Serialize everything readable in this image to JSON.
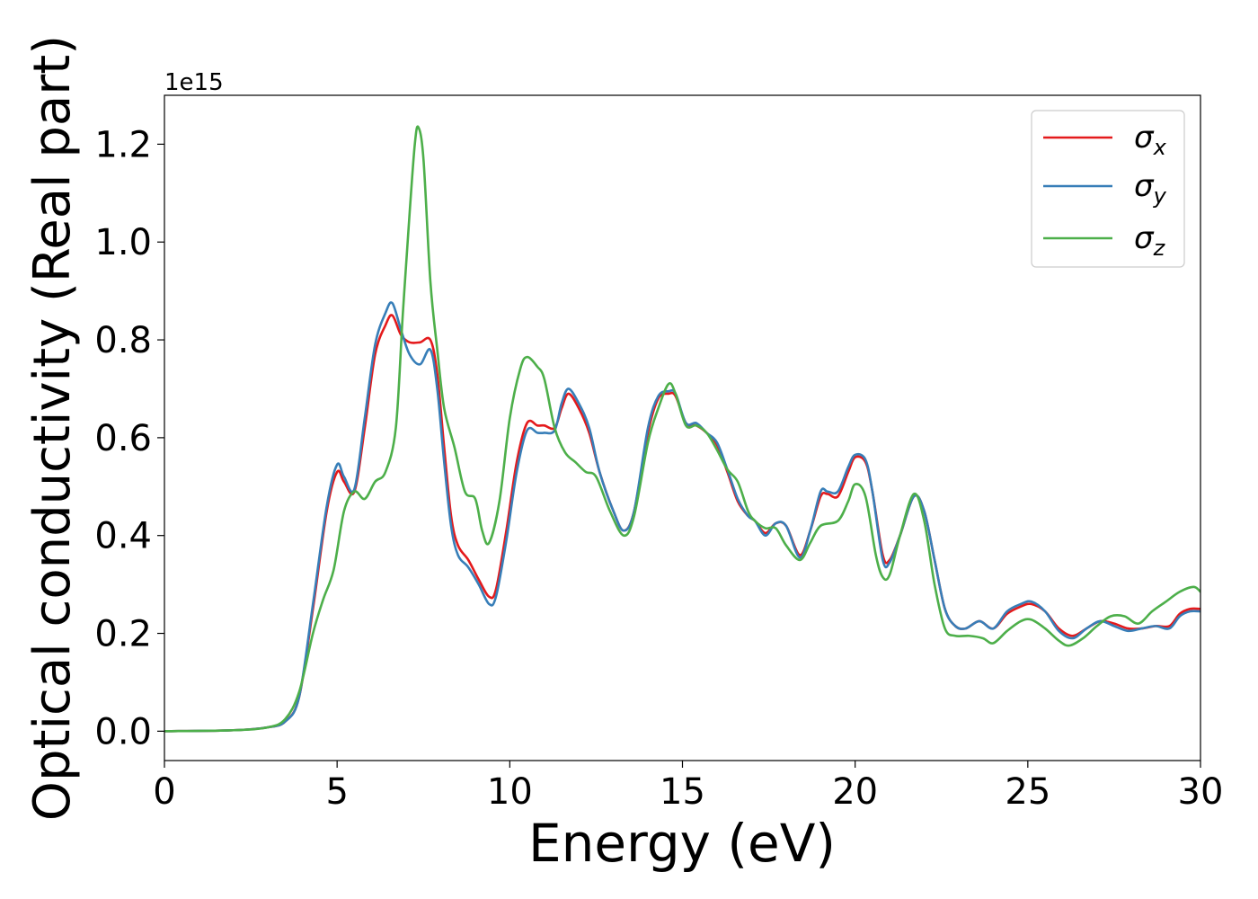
{
  "chart_data": {
    "type": "line",
    "title": "",
    "xlabel": "Energy (eV)",
    "ylabel": "Optical conductivity (Real part)",
    "y_offset_label": "1e15",
    "xlim": [
      0,
      30
    ],
    "ylim": [
      -0.06,
      1.3
    ],
    "xticks": [
      0,
      5,
      10,
      15,
      20,
      25,
      30
    ],
    "xtick_labels": [
      "0",
      "5",
      "10",
      "15",
      "20",
      "25",
      "30"
    ],
    "yticks": [
      0.0,
      0.2,
      0.4,
      0.6,
      0.8,
      1.0,
      1.2
    ],
    "ytick_labels": [
      "0.0",
      "0.2",
      "0.4",
      "0.6",
      "0.8",
      "1.0",
      "1.2"
    ],
    "grid": false,
    "legend_position": "top-right",
    "series": [
      {
        "name": "σ",
        "sub": "x",
        "color": "#e41a1c",
        "points": [
          [
            0,
            0
          ],
          [
            2,
            0.002
          ],
          [
            3,
            0.008
          ],
          [
            3.5,
            0.02
          ],
          [
            3.9,
            0.07
          ],
          [
            4.3,
            0.25
          ],
          [
            4.7,
            0.45
          ],
          [
            5.0,
            0.53
          ],
          [
            5.2,
            0.51
          ],
          [
            5.5,
            0.49
          ],
          [
            5.8,
            0.62
          ],
          [
            6.1,
            0.77
          ],
          [
            6.4,
            0.83
          ],
          [
            6.6,
            0.85
          ],
          [
            6.85,
            0.81
          ],
          [
            7.1,
            0.795
          ],
          [
            7.4,
            0.795
          ],
          [
            7.7,
            0.8
          ],
          [
            7.9,
            0.73
          ],
          [
            8.1,
            0.58
          ],
          [
            8.3,
            0.44
          ],
          [
            8.5,
            0.38
          ],
          [
            8.8,
            0.35
          ],
          [
            9.1,
            0.31
          ],
          [
            9.4,
            0.275
          ],
          [
            9.6,
            0.29
          ],
          [
            9.9,
            0.41
          ],
          [
            10.2,
            0.55
          ],
          [
            10.5,
            0.63
          ],
          [
            10.8,
            0.625
          ],
          [
            11.0,
            0.625
          ],
          [
            11.3,
            0.62
          ],
          [
            11.5,
            0.66
          ],
          [
            11.7,
            0.69
          ],
          [
            12.0,
            0.66
          ],
          [
            12.3,
            0.61
          ],
          [
            12.6,
            0.53
          ],
          [
            13.0,
            0.45
          ],
          [
            13.3,
            0.41
          ],
          [
            13.6,
            0.45
          ],
          [
            14.0,
            0.61
          ],
          [
            14.3,
            0.68
          ],
          [
            14.6,
            0.69
          ],
          [
            14.8,
            0.685
          ],
          [
            15.1,
            0.63
          ],
          [
            15.4,
            0.625
          ],
          [
            15.7,
            0.61
          ],
          [
            16.0,
            0.585
          ],
          [
            16.3,
            0.53
          ],
          [
            16.6,
            0.47
          ],
          [
            16.9,
            0.44
          ],
          [
            17.1,
            0.43
          ],
          [
            17.4,
            0.405
          ],
          [
            17.7,
            0.425
          ],
          [
            18.0,
            0.42
          ],
          [
            18.4,
            0.36
          ],
          [
            18.7,
            0.41
          ],
          [
            19.0,
            0.48
          ],
          [
            19.2,
            0.485
          ],
          [
            19.5,
            0.48
          ],
          [
            19.8,
            0.53
          ],
          [
            20.0,
            0.56
          ],
          [
            20.3,
            0.55
          ],
          [
            20.5,
            0.49
          ],
          [
            20.8,
            0.36
          ],
          [
            21.0,
            0.35
          ],
          [
            21.3,
            0.4
          ],
          [
            21.7,
            0.48
          ],
          [
            22.0,
            0.45
          ],
          [
            22.3,
            0.35
          ],
          [
            22.6,
            0.25
          ],
          [
            22.9,
            0.215
          ],
          [
            23.2,
            0.21
          ],
          [
            23.6,
            0.225
          ],
          [
            24.0,
            0.21
          ],
          [
            24.4,
            0.24
          ],
          [
            24.8,
            0.255
          ],
          [
            25.1,
            0.26
          ],
          [
            25.5,
            0.245
          ],
          [
            25.9,
            0.21
          ],
          [
            26.3,
            0.195
          ],
          [
            26.7,
            0.21
          ],
          [
            27.1,
            0.225
          ],
          [
            27.5,
            0.22
          ],
          [
            27.9,
            0.21
          ],
          [
            28.3,
            0.21
          ],
          [
            28.7,
            0.215
          ],
          [
            29.1,
            0.215
          ],
          [
            29.4,
            0.24
          ],
          [
            29.7,
            0.25
          ],
          [
            30.0,
            0.25
          ]
        ]
      },
      {
        "name": "σ",
        "sub": "y",
        "color": "#377eb8",
        "points": [
          [
            0,
            0
          ],
          [
            2,
            0.002
          ],
          [
            3,
            0.008
          ],
          [
            3.5,
            0.02
          ],
          [
            3.9,
            0.07
          ],
          [
            4.3,
            0.26
          ],
          [
            4.7,
            0.46
          ],
          [
            5.0,
            0.545
          ],
          [
            5.2,
            0.52
          ],
          [
            5.5,
            0.495
          ],
          [
            5.8,
            0.64
          ],
          [
            6.1,
            0.79
          ],
          [
            6.4,
            0.855
          ],
          [
            6.6,
            0.875
          ],
          [
            6.85,
            0.82
          ],
          [
            7.1,
            0.77
          ],
          [
            7.4,
            0.75
          ],
          [
            7.7,
            0.78
          ],
          [
            7.9,
            0.7
          ],
          [
            8.1,
            0.55
          ],
          [
            8.3,
            0.42
          ],
          [
            8.5,
            0.36
          ],
          [
            8.8,
            0.335
          ],
          [
            9.1,
            0.3
          ],
          [
            9.4,
            0.26
          ],
          [
            9.6,
            0.275
          ],
          [
            9.9,
            0.39
          ],
          [
            10.2,
            0.53
          ],
          [
            10.5,
            0.615
          ],
          [
            10.8,
            0.61
          ],
          [
            11.0,
            0.61
          ],
          [
            11.3,
            0.615
          ],
          [
            11.5,
            0.67
          ],
          [
            11.7,
            0.7
          ],
          [
            12.0,
            0.67
          ],
          [
            12.3,
            0.62
          ],
          [
            12.6,
            0.53
          ],
          [
            13.0,
            0.45
          ],
          [
            13.3,
            0.41
          ],
          [
            13.6,
            0.45
          ],
          [
            14.0,
            0.62
          ],
          [
            14.3,
            0.685
          ],
          [
            14.6,
            0.695
          ],
          [
            14.8,
            0.69
          ],
          [
            15.1,
            0.63
          ],
          [
            15.4,
            0.63
          ],
          [
            15.7,
            0.61
          ],
          [
            16.0,
            0.59
          ],
          [
            16.3,
            0.535
          ],
          [
            16.6,
            0.475
          ],
          [
            16.9,
            0.44
          ],
          [
            17.1,
            0.43
          ],
          [
            17.4,
            0.4
          ],
          [
            17.7,
            0.425
          ],
          [
            18.0,
            0.42
          ],
          [
            18.4,
            0.355
          ],
          [
            18.7,
            0.41
          ],
          [
            19.0,
            0.49
          ],
          [
            19.2,
            0.49
          ],
          [
            19.5,
            0.49
          ],
          [
            19.8,
            0.54
          ],
          [
            20.0,
            0.565
          ],
          [
            20.3,
            0.555
          ],
          [
            20.5,
            0.49
          ],
          [
            20.8,
            0.35
          ],
          [
            21.0,
            0.345
          ],
          [
            21.3,
            0.4
          ],
          [
            21.7,
            0.48
          ],
          [
            22.0,
            0.45
          ],
          [
            22.3,
            0.35
          ],
          [
            22.6,
            0.25
          ],
          [
            22.9,
            0.215
          ],
          [
            23.2,
            0.21
          ],
          [
            23.6,
            0.225
          ],
          [
            24.0,
            0.21
          ],
          [
            24.4,
            0.245
          ],
          [
            24.8,
            0.26
          ],
          [
            25.1,
            0.265
          ],
          [
            25.5,
            0.245
          ],
          [
            25.9,
            0.205
          ],
          [
            26.3,
            0.19
          ],
          [
            26.7,
            0.21
          ],
          [
            27.1,
            0.225
          ],
          [
            27.5,
            0.215
          ],
          [
            27.9,
            0.205
          ],
          [
            28.3,
            0.21
          ],
          [
            28.7,
            0.215
          ],
          [
            29.1,
            0.21
          ],
          [
            29.4,
            0.235
          ],
          [
            29.7,
            0.245
          ],
          [
            30.0,
            0.245
          ]
        ]
      },
      {
        "name": "σ",
        "sub": "z",
        "color": "#4daf4a",
        "points": [
          [
            0,
            0
          ],
          [
            2,
            0.002
          ],
          [
            3,
            0.008
          ],
          [
            3.5,
            0.025
          ],
          [
            3.9,
            0.08
          ],
          [
            4.3,
            0.2
          ],
          [
            4.6,
            0.27
          ],
          [
            4.9,
            0.33
          ],
          [
            5.2,
            0.45
          ],
          [
            5.5,
            0.49
          ],
          [
            5.8,
            0.475
          ],
          [
            6.1,
            0.51
          ],
          [
            6.4,
            0.53
          ],
          [
            6.7,
            0.62
          ],
          [
            6.9,
            0.85
          ],
          [
            7.1,
            1.06
          ],
          [
            7.25,
            1.2
          ],
          [
            7.35,
            1.235
          ],
          [
            7.5,
            1.17
          ],
          [
            7.7,
            0.92
          ],
          [
            7.9,
            0.78
          ],
          [
            8.1,
            0.66
          ],
          [
            8.4,
            0.58
          ],
          [
            8.7,
            0.49
          ],
          [
            9.0,
            0.475
          ],
          [
            9.2,
            0.41
          ],
          [
            9.4,
            0.385
          ],
          [
            9.7,
            0.47
          ],
          [
            10.0,
            0.64
          ],
          [
            10.3,
            0.74
          ],
          [
            10.5,
            0.765
          ],
          [
            10.8,
            0.745
          ],
          [
            11.0,
            0.72
          ],
          [
            11.3,
            0.62
          ],
          [
            11.6,
            0.57
          ],
          [
            11.9,
            0.55
          ],
          [
            12.2,
            0.53
          ],
          [
            12.5,
            0.52
          ],
          [
            12.9,
            0.45
          ],
          [
            13.3,
            0.4
          ],
          [
            13.6,
            0.44
          ],
          [
            14.0,
            0.59
          ],
          [
            14.3,
            0.66
          ],
          [
            14.6,
            0.71
          ],
          [
            14.8,
            0.69
          ],
          [
            15.1,
            0.625
          ],
          [
            15.4,
            0.625
          ],
          [
            15.7,
            0.61
          ],
          [
            16.0,
            0.575
          ],
          [
            16.3,
            0.535
          ],
          [
            16.6,
            0.51
          ],
          [
            16.9,
            0.45
          ],
          [
            17.1,
            0.43
          ],
          [
            17.4,
            0.415
          ],
          [
            17.7,
            0.415
          ],
          [
            18.0,
            0.38
          ],
          [
            18.4,
            0.35
          ],
          [
            18.7,
            0.385
          ],
          [
            19.0,
            0.42
          ],
          [
            19.5,
            0.43
          ],
          [
            19.8,
            0.47
          ],
          [
            20.0,
            0.505
          ],
          [
            20.3,
            0.48
          ],
          [
            20.6,
            0.36
          ],
          [
            20.8,
            0.315
          ],
          [
            21.0,
            0.32
          ],
          [
            21.3,
            0.4
          ],
          [
            21.7,
            0.485
          ],
          [
            22.0,
            0.43
          ],
          [
            22.3,
            0.3
          ],
          [
            22.6,
            0.21
          ],
          [
            22.9,
            0.195
          ],
          [
            23.3,
            0.195
          ],
          [
            23.7,
            0.19
          ],
          [
            24.0,
            0.18
          ],
          [
            24.4,
            0.205
          ],
          [
            24.8,
            0.225
          ],
          [
            25.1,
            0.228
          ],
          [
            25.5,
            0.21
          ],
          [
            25.9,
            0.185
          ],
          [
            26.2,
            0.175
          ],
          [
            26.6,
            0.19
          ],
          [
            27.0,
            0.215
          ],
          [
            27.4,
            0.235
          ],
          [
            27.8,
            0.235
          ],
          [
            28.2,
            0.22
          ],
          [
            28.6,
            0.245
          ],
          [
            29.0,
            0.265
          ],
          [
            29.4,
            0.285
          ],
          [
            29.8,
            0.295
          ],
          [
            30.0,
            0.285
          ]
        ]
      }
    ]
  }
}
